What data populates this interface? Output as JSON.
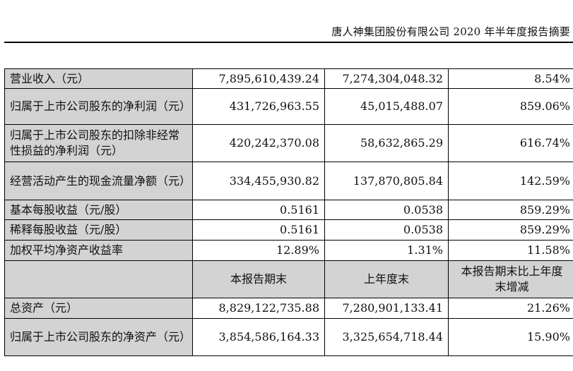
{
  "header": {
    "title": "唐人神集团股份有限公司 2020 年半年度报告摘要"
  },
  "table": {
    "rows_top": [
      {
        "label": "营业收入（元）",
        "current": "7,895,610,439.24",
        "prior": "7,274,304,048.32",
        "change": "8.54%"
      },
      {
        "label": "归属于上市公司股东的净利润（元）",
        "current": "431,726,963.55",
        "prior": "45,015,488.07",
        "change": "859.06%"
      },
      {
        "label": "归属于上市公司股东的扣除非经常性损益的净利润（元）",
        "current": "420,242,370.08",
        "prior": "58,632,865.29",
        "change": "616.74%"
      },
      {
        "label": "经营活动产生的现金流量净额（元）",
        "current": "334,455,930.82",
        "prior": "137,870,805.84",
        "change": "142.59%"
      },
      {
        "label": "基本每股收益（元/股）",
        "current": "0.5161",
        "prior": "0.0538",
        "change": "859.29%"
      },
      {
        "label": "稀释每股收益（元/股）",
        "current": "0.5161",
        "prior": "0.0538",
        "change": "859.29%"
      },
      {
        "label": "加权平均净资产收益率",
        "current": "12.89%",
        "prior": "1.31%",
        "change": "11.58%"
      }
    ],
    "subheader": {
      "col1": "本报告期末",
      "col2": "上年度末",
      "col3": "本报告期末比上年度末增减"
    },
    "rows_bottom": [
      {
        "label": "总资产（元）",
        "current": "8,829,122,735.88",
        "prior": "7,280,901,133.41",
        "change": "21.26%"
      },
      {
        "label": "归属于上市公司股东的净资产（元）",
        "current": "3,854,586,164.33",
        "prior": "3,325,654,718.44",
        "change": "15.90%"
      }
    ]
  }
}
